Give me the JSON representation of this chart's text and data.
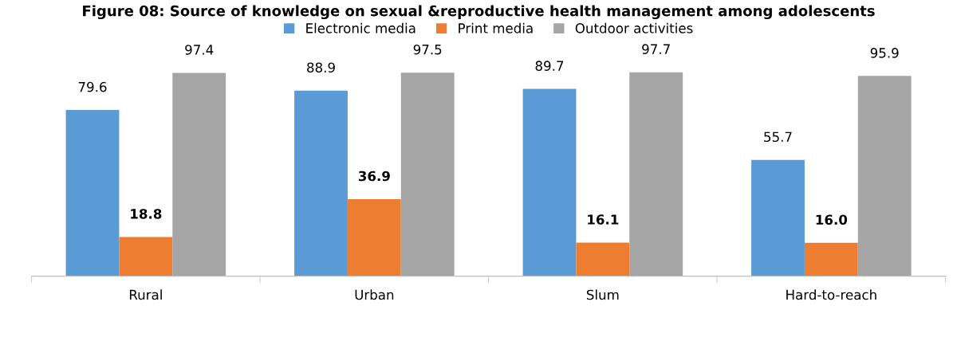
{
  "chart_data": {
    "type": "bar",
    "title": "Figure 08: Source of knowledge on sexual &reproductive health management among adolescents",
    "categories": [
      "Rural",
      "Urban",
      "Slum",
      "Hard-to-reach"
    ],
    "series": [
      {
        "name": "Electronic media",
        "color": "#5b9bd5",
        "values": [
          79.6,
          88.9,
          89.7,
          55.7
        ],
        "value_labels": [
          "79.6",
          "88.9",
          "89.7",
          "55.7"
        ]
      },
      {
        "name": "Print media",
        "color": "#ed7d31",
        "values": [
          18.8,
          36.9,
          16.1,
          16.0
        ],
        "value_labels": [
          "18.8",
          "36.9",
          "16.1",
          "16.0"
        ]
      },
      {
        "name": "Outdoor activities",
        "color": "#a5a5a5",
        "values": [
          97.4,
          97.5,
          97.7,
          95.9
        ],
        "value_labels": [
          "97.4",
          "97.5",
          "97.7",
          "95.9"
        ]
      }
    ],
    "legend": "top",
    "grid": false
  }
}
